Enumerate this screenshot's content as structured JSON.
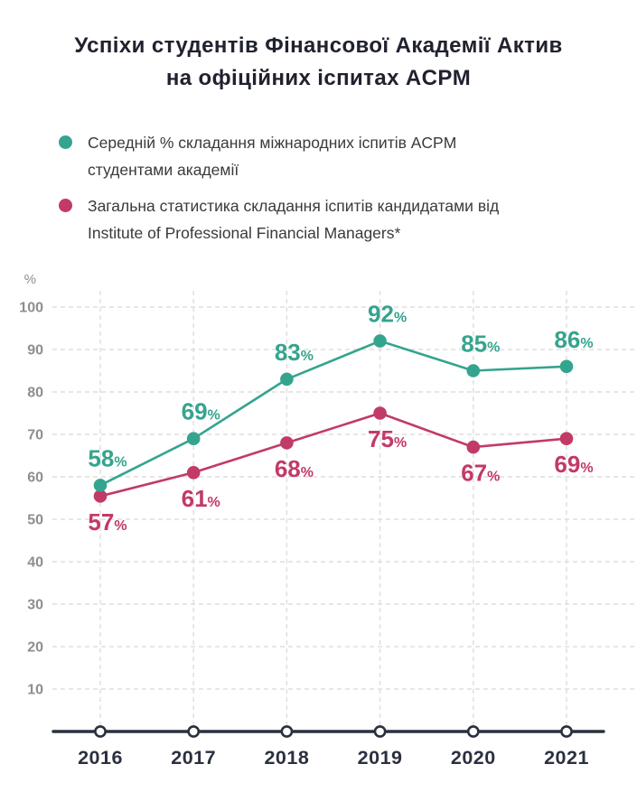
{
  "title": {
    "line1": "Успіхи студентів Фінансової Академії Актив",
    "line2": "на офіційних іспитах ACPM"
  },
  "legend": [
    {
      "line1": "Середній % складання міжнародних іспитів ACPM",
      "line2": "студентами академії",
      "color": "#35A48E"
    },
    {
      "line1": "Загальна статистика складання іспитів кандидатами від",
      "line2": "Institute of Professional Financial Managers*",
      "color": "#C23A66"
    }
  ],
  "chart_data": {
    "type": "line",
    "title": "Успіхи студентів Фінансової Академії Актив на офіційних іспитах ACPM",
    "x": [
      "2016",
      "2017",
      "2018",
      "2019",
      "2020",
      "2021"
    ],
    "series": [
      {
        "name": "Середній % складання міжнародних іспитів ACPM студентами академії",
        "color": "#35A48E",
        "values": [
          58,
          69,
          83,
          92,
          85,
          86
        ],
        "label_position": "above"
      },
      {
        "name": "Загальна статистика складання іспитів кандидатами від Institute of Professional Financial Managers*",
        "color": "#C23A66",
        "values": [
          57,
          61,
          68,
          75,
          67,
          69
        ],
        "label_position": "below"
      }
    ],
    "y_unit": "%",
    "y_ticks": [
      100,
      90,
      80,
      70,
      60,
      50,
      40,
      30,
      20,
      10
    ],
    "ylim": [
      0,
      105
    ],
    "grid": true,
    "data_labels": true,
    "label_suffix": "%",
    "legend_position": "top-left"
  },
  "colors": {
    "axis": "#2B3040",
    "tick": "#8E8E92",
    "grid": "#DEDEDE",
    "background": "#FFFFFF",
    "title": "#20222F",
    "legend_text": "#3A3A3A"
  }
}
